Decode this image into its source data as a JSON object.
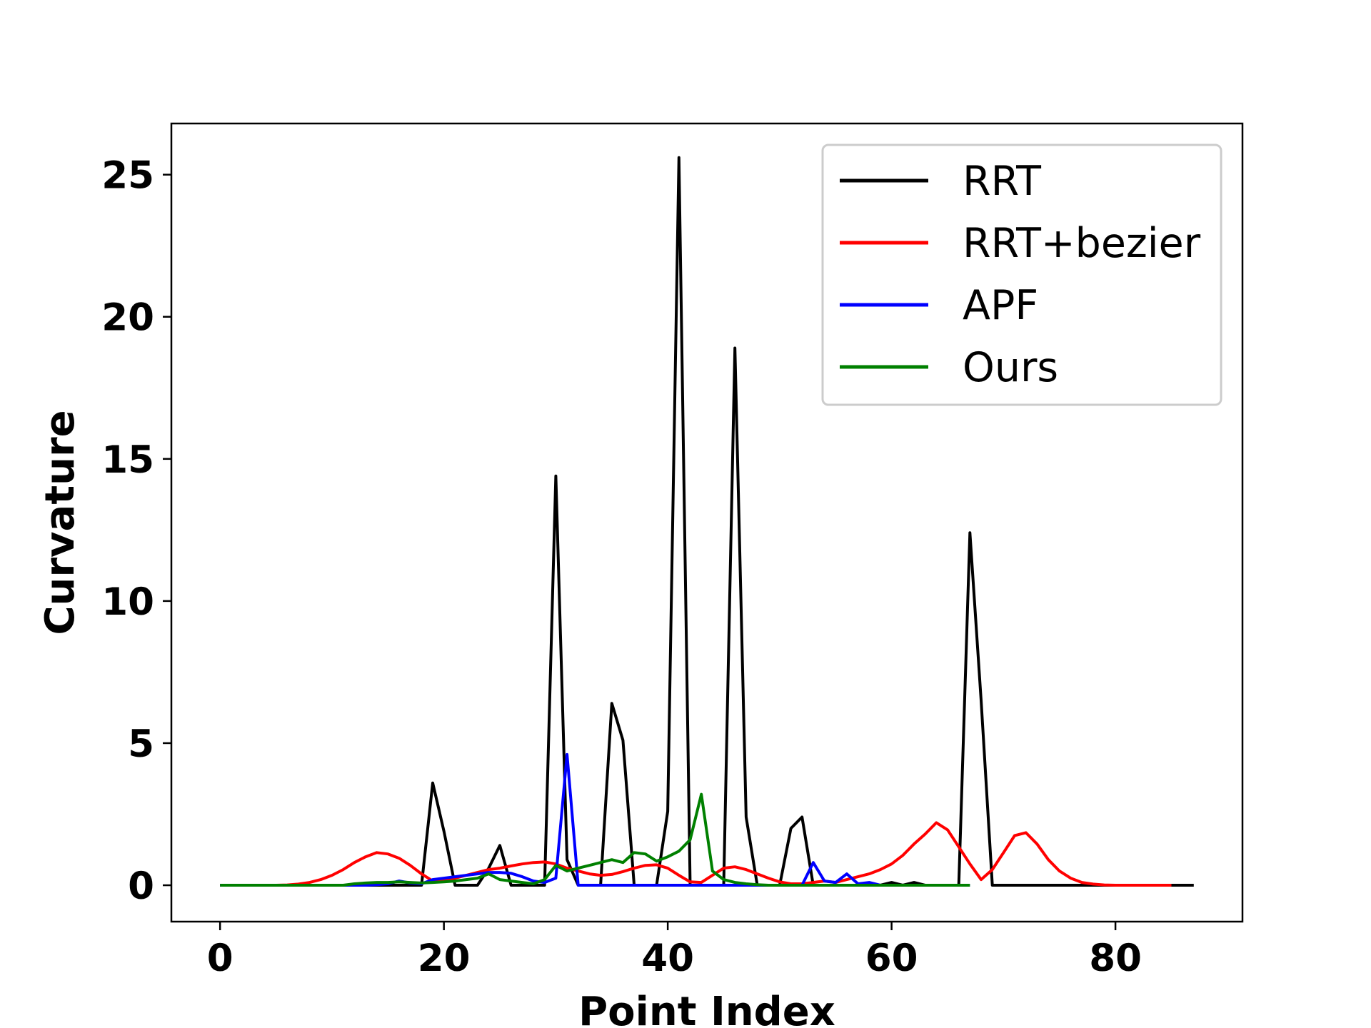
{
  "chart_data": {
    "type": "line",
    "xlabel": "Point Index",
    "ylabel": "Curvature",
    "xlim": [
      -4.35,
      91.35
    ],
    "ylim": [
      -1.28,
      26.8
    ],
    "xticks": [
      0,
      20,
      40,
      60,
      80
    ],
    "yticks": [
      0,
      5,
      10,
      15,
      20,
      25
    ],
    "grid": false,
    "legend_position": "top-right",
    "series": [
      {
        "name": "RRT",
        "color": "#000000",
        "x": [
          0,
          1,
          2,
          3,
          4,
          5,
          6,
          7,
          8,
          9,
          10,
          11,
          12,
          13,
          14,
          15,
          16,
          17,
          18,
          19,
          20,
          21,
          22,
          23,
          24,
          25,
          26,
          27,
          28,
          29,
          30,
          31,
          32,
          33,
          34,
          35,
          36,
          37,
          38,
          39,
          40,
          41,
          42,
          43,
          44,
          45,
          46,
          47,
          48,
          49,
          50,
          51,
          52,
          53,
          54,
          55,
          56,
          57,
          58,
          59,
          60,
          61,
          62,
          63,
          64,
          65,
          66,
          67,
          68,
          69,
          70,
          71,
          72,
          73,
          74,
          75,
          76,
          77,
          78,
          79,
          80,
          81,
          82,
          83,
          84,
          85,
          86,
          87
        ],
        "y": [
          0,
          0,
          0,
          0,
          0,
          0,
          0,
          0,
          0,
          0,
          0,
          0,
          0,
          0,
          0,
          0,
          0,
          0,
          0,
          3.6,
          1.9,
          0,
          0,
          0,
          0.6,
          1.4,
          0,
          0,
          0,
          0,
          14.4,
          0.9,
          0,
          0,
          0,
          6.4,
          5.1,
          0,
          0,
          0,
          2.6,
          25.6,
          0,
          0,
          0,
          0,
          18.9,
          2.4,
          0,
          0,
          0,
          2.0,
          2.4,
          0,
          0,
          0,
          0,
          0,
          0,
          0,
          0.1,
          0,
          0.1,
          0,
          0,
          0,
          0,
          12.4,
          6.5,
          0,
          0,
          0,
          0,
          0,
          0,
          0,
          0,
          0,
          0,
          0,
          0,
          0,
          0,
          0,
          0,
          0,
          0,
          0
        ]
      },
      {
        "name": "RRT+bezier",
        "color": "#ff0000",
        "x": [
          0,
          1,
          2,
          3,
          4,
          5,
          6,
          7,
          8,
          9,
          10,
          11,
          12,
          13,
          14,
          15,
          16,
          17,
          18,
          19,
          20,
          21,
          22,
          23,
          24,
          25,
          26,
          27,
          28,
          29,
          30,
          31,
          32,
          33,
          34,
          35,
          36,
          37,
          38,
          39,
          40,
          41,
          42,
          43,
          44,
          45,
          46,
          47,
          48,
          49,
          50,
          51,
          52,
          53,
          54,
          55,
          56,
          57,
          58,
          59,
          60,
          61,
          62,
          63,
          64,
          65,
          66,
          67,
          68,
          69,
          70,
          71,
          72,
          73,
          74,
          75,
          76,
          77,
          78,
          79,
          80,
          81,
          82,
          83,
          84,
          85
        ],
        "y": [
          0,
          0,
          0,
          0,
          0,
          0,
          0.01,
          0.04,
          0.1,
          0.2,
          0.35,
          0.55,
          0.8,
          1.0,
          1.15,
          1.1,
          0.95,
          0.7,
          0.4,
          0.15,
          0.2,
          0.25,
          0.35,
          0.45,
          0.55,
          0.6,
          0.68,
          0.75,
          0.8,
          0.82,
          0.75,
          0.6,
          0.5,
          0.4,
          0.35,
          0.38,
          0.48,
          0.6,
          0.7,
          0.72,
          0.6,
          0.35,
          0.12,
          0.1,
          0.35,
          0.6,
          0.65,
          0.55,
          0.4,
          0.25,
          0.12,
          0.05,
          0.05,
          0.1,
          0.15,
          0.1,
          0.2,
          0.3,
          0.4,
          0.55,
          0.75,
          1.05,
          1.45,
          1.8,
          2.2,
          1.95,
          1.35,
          0.75,
          0.2,
          0.55,
          1.15,
          1.75,
          1.85,
          1.45,
          0.9,
          0.5,
          0.25,
          0.1,
          0.04,
          0.01,
          0,
          0,
          0,
          0,
          0,
          0
        ]
      },
      {
        "name": "APF",
        "color": "#0000ff",
        "x": [
          0,
          1,
          2,
          3,
          4,
          5,
          6,
          7,
          8,
          9,
          10,
          11,
          12,
          13,
          14,
          15,
          16,
          17,
          18,
          19,
          20,
          21,
          22,
          23,
          24,
          25,
          26,
          27,
          28,
          29,
          30,
          31,
          32,
          33,
          34,
          35,
          36,
          37,
          38,
          39,
          40,
          41,
          42,
          43,
          44,
          45,
          46,
          47,
          48,
          49,
          50,
          51,
          52,
          53,
          54,
          55,
          56,
          57,
          58,
          59,
          60,
          61,
          62,
          63,
          64,
          65,
          66,
          67
        ],
        "y": [
          0,
          0,
          0,
          0,
          0,
          0,
          0,
          0,
          0,
          0,
          0,
          0,
          0,
          0,
          0.02,
          0.05,
          0.15,
          0.08,
          0.05,
          0.2,
          0.25,
          0.3,
          0.35,
          0.4,
          0.45,
          0.45,
          0.42,
          0.3,
          0.15,
          0.1,
          0.25,
          4.6,
          0,
          0,
          0,
          0,
          0,
          0,
          0,
          0,
          0,
          0,
          0,
          0,
          0,
          0,
          0,
          0,
          0,
          0,
          0,
          0,
          0,
          0.8,
          0.15,
          0.1,
          0.4,
          0.05,
          0.1,
          0,
          0,
          0,
          0,
          0,
          0,
          0,
          0,
          0
        ]
      },
      {
        "name": "Ours",
        "color": "#008000",
        "x": [
          0,
          1,
          2,
          3,
          4,
          5,
          6,
          7,
          8,
          9,
          10,
          11,
          12,
          13,
          14,
          15,
          16,
          17,
          18,
          19,
          20,
          21,
          22,
          23,
          24,
          25,
          26,
          27,
          28,
          29,
          30,
          31,
          32,
          33,
          34,
          35,
          36,
          37,
          38,
          39,
          40,
          41,
          42,
          43,
          44,
          45,
          46,
          47,
          48,
          49,
          50,
          51,
          52,
          53,
          54,
          55,
          56,
          57,
          58,
          59,
          60,
          61,
          62,
          63,
          64,
          65,
          66,
          67
        ],
        "y": [
          0,
          0,
          0,
          0,
          0,
          0,
          0,
          0,
          0,
          0,
          0,
          0,
          0.05,
          0.08,
          0.1,
          0.1,
          0.12,
          0.1,
          0.08,
          0.1,
          0.12,
          0.15,
          0.2,
          0.25,
          0.4,
          0.2,
          0.15,
          0.1,
          0.05,
          0.2,
          0.7,
          0.5,
          0.6,
          0.7,
          0.8,
          0.9,
          0.8,
          1.15,
          1.1,
          0.85,
          1.0,
          1.2,
          1.6,
          3.2,
          0.5,
          0.2,
          0.1,
          0.05,
          0.02,
          0,
          0,
          0,
          0,
          0,
          0,
          0,
          0,
          0,
          0,
          0,
          0,
          0,
          0,
          0,
          0,
          0,
          0,
          0
        ]
      }
    ]
  }
}
